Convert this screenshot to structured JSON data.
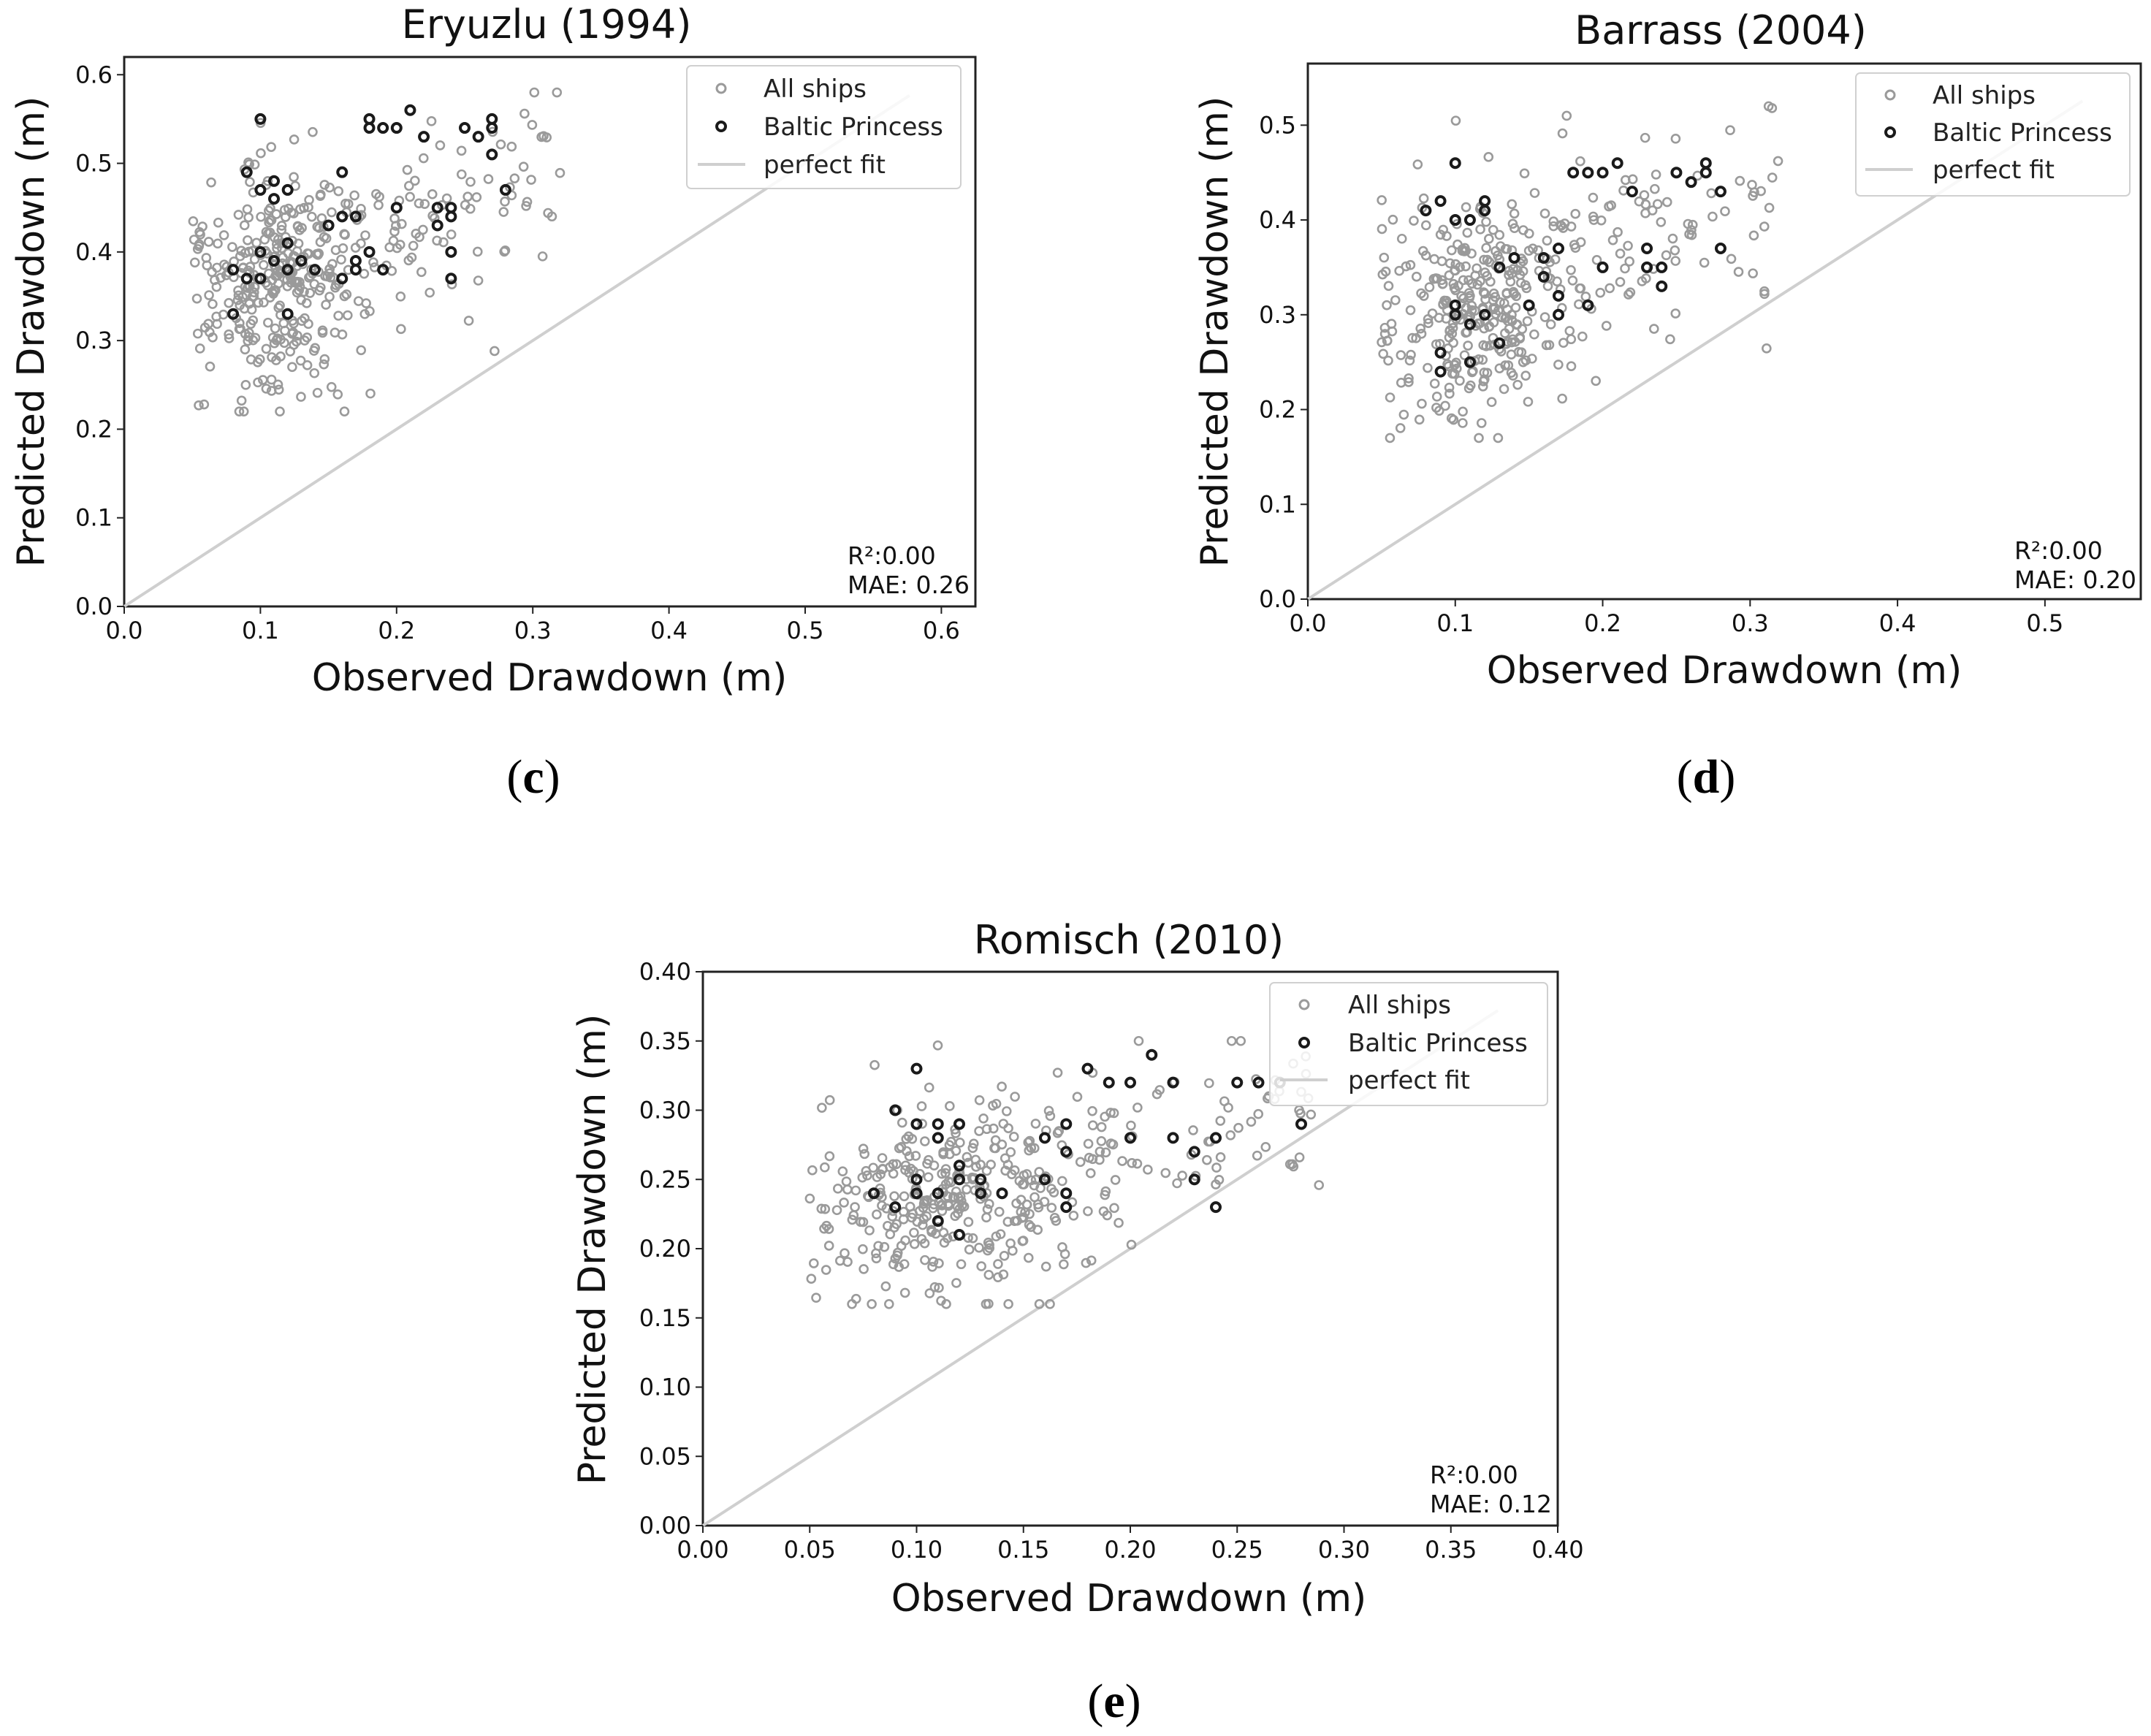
{
  "chart_data": [
    {
      "type": "scatter",
      "panel": "c",
      "title": "Eryuzlu (1994)",
      "xlabel": "Observed Drawdown (m)",
      "ylabel": "Predicted Drawdown (m)",
      "xlim": [
        0.0,
        0.625
      ],
      "ylim": [
        0.0,
        0.62
      ],
      "xticks": [
        "0.0",
        "0.1",
        "0.2",
        "0.3",
        "0.4",
        "0.5",
        "0.6"
      ],
      "yticks": [
        "0.0",
        "0.1",
        "0.2",
        "0.3",
        "0.4",
        "0.5",
        "0.6"
      ],
      "legend": [
        "All ships",
        "Baltic Princess",
        "perfect fit"
      ],
      "legend_position": "top-right",
      "stats": {
        "r2_label": "R²:0.00",
        "mae_label": "MAE: 0.26"
      },
      "series": [
        {
          "name": "All ships",
          "color": "#9a9a9a",
          "x_range": [
            0.05,
            0.32
          ],
          "y_range": [
            0.22,
            0.58
          ],
          "x_center": 0.12,
          "y_center": 0.37,
          "count": 420
        },
        {
          "name": "Baltic Princess",
          "color": "#1a1a1a",
          "points": [
            [
              0.1,
              0.55
            ],
            [
              0.09,
              0.49
            ],
            [
              0.1,
              0.47
            ],
            [
              0.11,
              0.46
            ],
            [
              0.12,
              0.47
            ],
            [
              0.11,
              0.48
            ],
            [
              0.1,
              0.4
            ],
            [
              0.11,
              0.39
            ],
            [
              0.12,
              0.41
            ],
            [
              0.12,
              0.38
            ],
            [
              0.13,
              0.39
            ],
            [
              0.14,
              0.38
            ],
            [
              0.08,
              0.38
            ],
            [
              0.09,
              0.37
            ],
            [
              0.1,
              0.37
            ],
            [
              0.12,
              0.33
            ],
            [
              0.08,
              0.33
            ],
            [
              0.16,
              0.49
            ],
            [
              0.16,
              0.44
            ],
            [
              0.17,
              0.44
            ],
            [
              0.17,
              0.38
            ],
            [
              0.17,
              0.39
            ],
            [
              0.18,
              0.4
            ],
            [
              0.16,
              0.37
            ],
            [
              0.18,
              0.55
            ],
            [
              0.18,
              0.54
            ],
            [
              0.19,
              0.54
            ],
            [
              0.2,
              0.54
            ],
            [
              0.21,
              0.56
            ],
            [
              0.22,
              0.53
            ],
            [
              0.2,
              0.45
            ],
            [
              0.23,
              0.45
            ],
            [
              0.24,
              0.45
            ],
            [
              0.24,
              0.44
            ],
            [
              0.23,
              0.43
            ],
            [
              0.24,
              0.4
            ],
            [
              0.24,
              0.37
            ],
            [
              0.25,
              0.54
            ],
            [
              0.26,
              0.53
            ],
            [
              0.27,
              0.55
            ],
            [
              0.27,
              0.54
            ],
            [
              0.27,
              0.51
            ],
            [
              0.28,
              0.47
            ],
            [
              0.19,
              0.38
            ],
            [
              0.15,
              0.43
            ]
          ]
        }
      ]
    },
    {
      "type": "scatter",
      "panel": "d",
      "title": "Barrass (2004)",
      "xlabel": "Observed Drawdown (m)",
      "ylabel": "Predicted Drawdown (m)",
      "xlim": [
        0.0,
        0.565
      ],
      "ylim": [
        0.0,
        0.565
      ],
      "xticks": [
        "0.0",
        "0.1",
        "0.2",
        "0.3",
        "0.4",
        "0.5"
      ],
      "yticks": [
        "0.0",
        "0.1",
        "0.2",
        "0.3",
        "0.4",
        "0.5"
      ],
      "legend": [
        "All ships",
        "Baltic Princess",
        "perfect fit"
      ],
      "legend_position": "top-right",
      "stats": {
        "r2_label": "R²:0.00",
        "mae_label": "MAE: 0.20"
      },
      "series": [
        {
          "name": "All ships",
          "color": "#9a9a9a",
          "x_range": [
            0.05,
            0.32
          ],
          "y_range": [
            0.17,
            0.52
          ],
          "x_center": 0.12,
          "y_center": 0.31,
          "count": 420
        },
        {
          "name": "Baltic Princess",
          "color": "#1a1a1a",
          "points": [
            [
              0.1,
              0.46
            ],
            [
              0.09,
              0.42
            ],
            [
              0.1,
              0.4
            ],
            [
              0.11,
              0.4
            ],
            [
              0.12,
              0.42
            ],
            [
              0.12,
              0.41
            ],
            [
              0.08,
              0.41
            ],
            [
              0.1,
              0.3
            ],
            [
              0.11,
              0.29
            ],
            [
              0.1,
              0.31
            ],
            [
              0.11,
              0.25
            ],
            [
              0.09,
              0.26
            ],
            [
              0.09,
              0.24
            ],
            [
              0.12,
              0.3
            ],
            [
              0.13,
              0.35
            ],
            [
              0.14,
              0.36
            ],
            [
              0.13,
              0.27
            ],
            [
              0.15,
              0.31
            ],
            [
              0.16,
              0.36
            ],
            [
              0.17,
              0.37
            ],
            [
              0.17,
              0.32
            ],
            [
              0.17,
              0.3
            ],
            [
              0.18,
              0.45
            ],
            [
              0.19,
              0.45
            ],
            [
              0.19,
              0.31
            ],
            [
              0.2,
              0.45
            ],
            [
              0.2,
              0.35
            ],
            [
              0.21,
              0.46
            ],
            [
              0.22,
              0.43
            ],
            [
              0.23,
              0.37
            ],
            [
              0.23,
              0.35
            ],
            [
              0.24,
              0.35
            ],
            [
              0.24,
              0.33
            ],
            [
              0.25,
              0.45
            ],
            [
              0.26,
              0.44
            ],
            [
              0.27,
              0.46
            ],
            [
              0.27,
              0.45
            ],
            [
              0.28,
              0.43
            ],
            [
              0.28,
              0.37
            ],
            [
              0.16,
              0.34
            ]
          ]
        }
      ]
    },
    {
      "type": "scatter",
      "panel": "e",
      "title": "Romisch (2010)",
      "xlabel": "Observed Drawdown (m)",
      "ylabel": "Predicted Drawdown (m)",
      "xlim": [
        0.0,
        0.4
      ],
      "ylim": [
        0.0,
        0.4
      ],
      "xticks": [
        "0.00",
        "0.05",
        "0.10",
        "0.15",
        "0.20",
        "0.25",
        "0.30",
        "0.35",
        "0.40"
      ],
      "yticks": [
        "0.00",
        "0.05",
        "0.10",
        "0.15",
        "0.20",
        "0.25",
        "0.30",
        "0.35",
        "0.40"
      ],
      "legend": [
        "All ships",
        "Baltic Princess",
        "perfect fit"
      ],
      "legend_position": "top-right",
      "stats": {
        "r2_label": "R²:0.00",
        "mae_label": "MAE: 0.12"
      },
      "series": [
        {
          "name": "All ships",
          "color": "#9a9a9a",
          "x_range": [
            0.05,
            0.29
          ],
          "y_range": [
            0.16,
            0.35
          ],
          "x_center": 0.12,
          "y_center": 0.235,
          "count": 420
        },
        {
          "name": "Baltic Princess",
          "color": "#1a1a1a",
          "points": [
            [
              0.1,
              0.33
            ],
            [
              0.09,
              0.3
            ],
            [
              0.1,
              0.29
            ],
            [
              0.11,
              0.29
            ],
            [
              0.11,
              0.28
            ],
            [
              0.12,
              0.29
            ],
            [
              0.1,
              0.25
            ],
            [
              0.11,
              0.24
            ],
            [
              0.12,
              0.26
            ],
            [
              0.12,
              0.25
            ],
            [
              0.13,
              0.25
            ],
            [
              0.13,
              0.24
            ],
            [
              0.08,
              0.24
            ],
            [
              0.09,
              0.23
            ],
            [
              0.1,
              0.24
            ],
            [
              0.12,
              0.21
            ],
            [
              0.11,
              0.22
            ],
            [
              0.14,
              0.24
            ],
            [
              0.16,
              0.28
            ],
            [
              0.17,
              0.29
            ],
            [
              0.17,
              0.27
            ],
            [
              0.17,
              0.24
            ],
            [
              0.18,
              0.33
            ],
            [
              0.19,
              0.32
            ],
            [
              0.2,
              0.32
            ],
            [
              0.21,
              0.34
            ],
            [
              0.22,
              0.32
            ],
            [
              0.2,
              0.28
            ],
            [
              0.22,
              0.28
            ],
            [
              0.23,
              0.27
            ],
            [
              0.24,
              0.28
            ],
            [
              0.23,
              0.25
            ],
            [
              0.24,
              0.23
            ],
            [
              0.25,
              0.32
            ],
            [
              0.26,
              0.32
            ],
            [
              0.27,
              0.32
            ],
            [
              0.28,
              0.29
            ],
            [
              0.16,
              0.25
            ],
            [
              0.17,
              0.23
            ]
          ]
        }
      ]
    }
  ],
  "captions": [
    {
      "open": "(",
      "letter": "c",
      "close": ")"
    },
    {
      "open": "(",
      "letter": "d",
      "close": ")"
    },
    {
      "open": "(",
      "letter": "e",
      "close": ")"
    }
  ]
}
